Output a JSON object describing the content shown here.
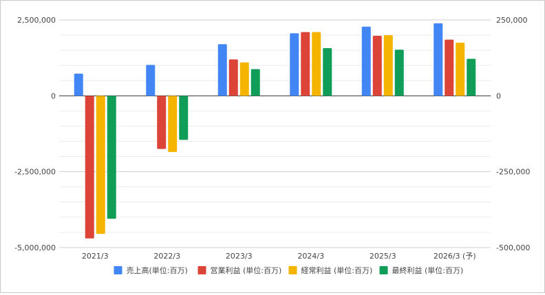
{
  "chart_data": {
    "type": "bar",
    "title": "",
    "xlabel": "",
    "ylabel": "",
    "categories": [
      "2021/3",
      "2022/3",
      "2023/3",
      "2024/3",
      "2025/3",
      "2026/3 (予)"
    ],
    "series": [
      {
        "name": "売上高(単位:百万)",
        "axis": "left",
        "color": "#4285f4",
        "values": [
          730000,
          1020000,
          1700000,
          2060000,
          2280000,
          2390000
        ]
      },
      {
        "name": "営業利益 (単位:百万)",
        "axis": "right",
        "color": "#db4437",
        "values": [
          -470000,
          -175000,
          120000,
          210000,
          198000,
          185000
        ]
      },
      {
        "name": "経常利益 (単位:百万)",
        "axis": "right",
        "color": "#f4b400",
        "values": [
          -455000,
          -185000,
          110000,
          210000,
          200000,
          175000
        ]
      },
      {
        "name": "最終利益 (単位:百万)",
        "axis": "right",
        "color": "#0f9d58",
        "values": [
          -405000,
          -145000,
          88000,
          157000,
          152000,
          122000
        ]
      }
    ],
    "left_axis": {
      "ylim": [
        -5000000,
        2500000
      ],
      "ticks": [
        2500000,
        0,
        -2500000,
        -5000000
      ],
      "tick_labels": [
        "2,500,000",
        "0",
        "-2,500,000",
        "-5,000,000"
      ]
    },
    "right_axis": {
      "ylim": [
        -500000,
        250000
      ],
      "ticks": [
        250000,
        0,
        -250000,
        -500000
      ],
      "tick_labels": [
        "250,000",
        "0",
        "-250,000",
        "-500,000"
      ]
    },
    "grid": true,
    "legend_position": "bottom"
  }
}
